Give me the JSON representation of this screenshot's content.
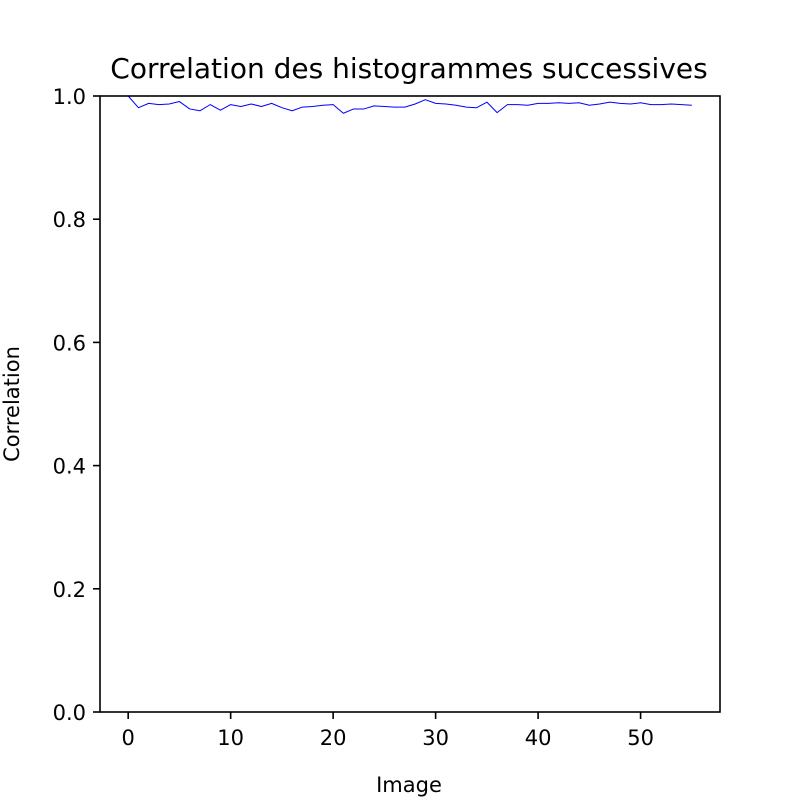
{
  "chart_data": {
    "type": "line",
    "title": "Correlation des histogrammes successives",
    "xlabel": "Image",
    "ylabel": "Correlation",
    "xlim": [
      -2.75,
      57.75
    ],
    "ylim": [
      0.0,
      1.0
    ],
    "xticks": [
      0,
      10,
      20,
      30,
      40,
      50
    ],
    "yticks": [
      0.0,
      0.2,
      0.4,
      0.6,
      0.8,
      1.0
    ],
    "xtick_labels": [
      "0",
      "10",
      "20",
      "30",
      "40",
      "50"
    ],
    "ytick_labels": [
      "0.0",
      "0.2",
      "0.4",
      "0.6",
      "0.8",
      "1.0"
    ],
    "grid": false,
    "series": [
      {
        "color": "#0000ff",
        "x": [
          0,
          1,
          2,
          3,
          4,
          5,
          6,
          7,
          8,
          9,
          10,
          11,
          12,
          13,
          14,
          15,
          16,
          17,
          18,
          19,
          20,
          21,
          22,
          23,
          24,
          25,
          26,
          27,
          28,
          29,
          30,
          31,
          32,
          33,
          34,
          35,
          36,
          37,
          38,
          39,
          40,
          41,
          42,
          43,
          44,
          45,
          46,
          47,
          48,
          49,
          50,
          51,
          52,
          53,
          54,
          55
        ],
        "y": [
          1.0,
          0.981,
          0.988,
          0.986,
          0.987,
          0.991,
          0.979,
          0.976,
          0.986,
          0.977,
          0.986,
          0.983,
          0.987,
          0.983,
          0.988,
          0.981,
          0.976,
          0.982,
          0.983,
          0.985,
          0.986,
          0.972,
          0.979,
          0.979,
          0.984,
          0.983,
          0.982,
          0.982,
          0.987,
          0.994,
          0.988,
          0.987,
          0.985,
          0.982,
          0.981,
          0.99,
          0.973,
          0.986,
          0.986,
          0.985,
          0.988,
          0.988,
          0.989,
          0.988,
          0.989,
          0.985,
          0.987,
          0.99,
          0.988,
          0.987,
          0.989,
          0.986,
          0.986,
          0.987,
          0.986,
          0.985
        ]
      }
    ]
  }
}
